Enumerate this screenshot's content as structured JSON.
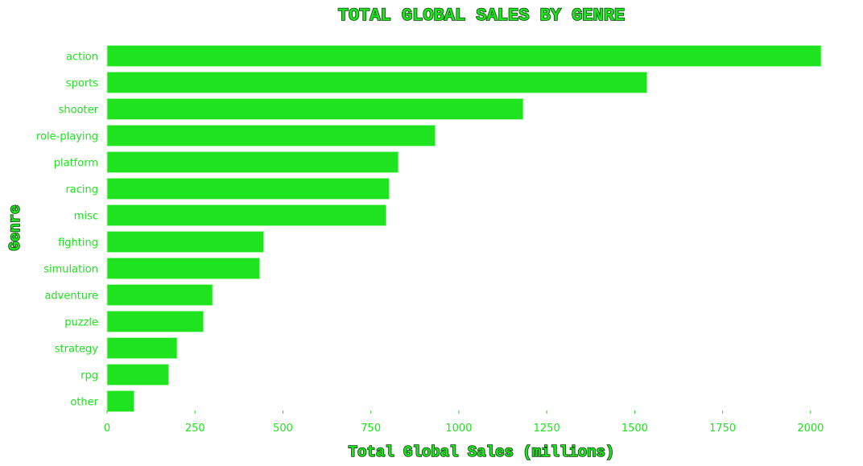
{
  "chart_data": {
    "type": "bar",
    "orientation": "horizontal",
    "title": "TOTAL GLOBAL SALES BY GENRE",
    "xlabel": "Total Global Sales (millions)",
    "ylabel": "Genre",
    "categories": [
      "action",
      "sports",
      "shooter",
      "role-playing",
      "platform",
      "racing",
      "misc",
      "fighting",
      "simulation",
      "adventure",
      "puzzle",
      "strategy",
      "rpg",
      "other"
    ],
    "values": [
      2030,
      1535,
      1183,
      933,
      828,
      802,
      793,
      445,
      434,
      300,
      274,
      199,
      175,
      77
    ],
    "xticks": [
      "0",
      "250",
      "500",
      "750",
      "1000",
      "1250",
      "1500",
      "1750",
      "2000"
    ],
    "xlim": [
      0,
      2050
    ],
    "grid": false,
    "colors": {
      "bar": "#1ee31e",
      "bar_edge": "#a8f5a8",
      "text": "#1ee31e",
      "title_outline": "#0a3d0a"
    }
  }
}
